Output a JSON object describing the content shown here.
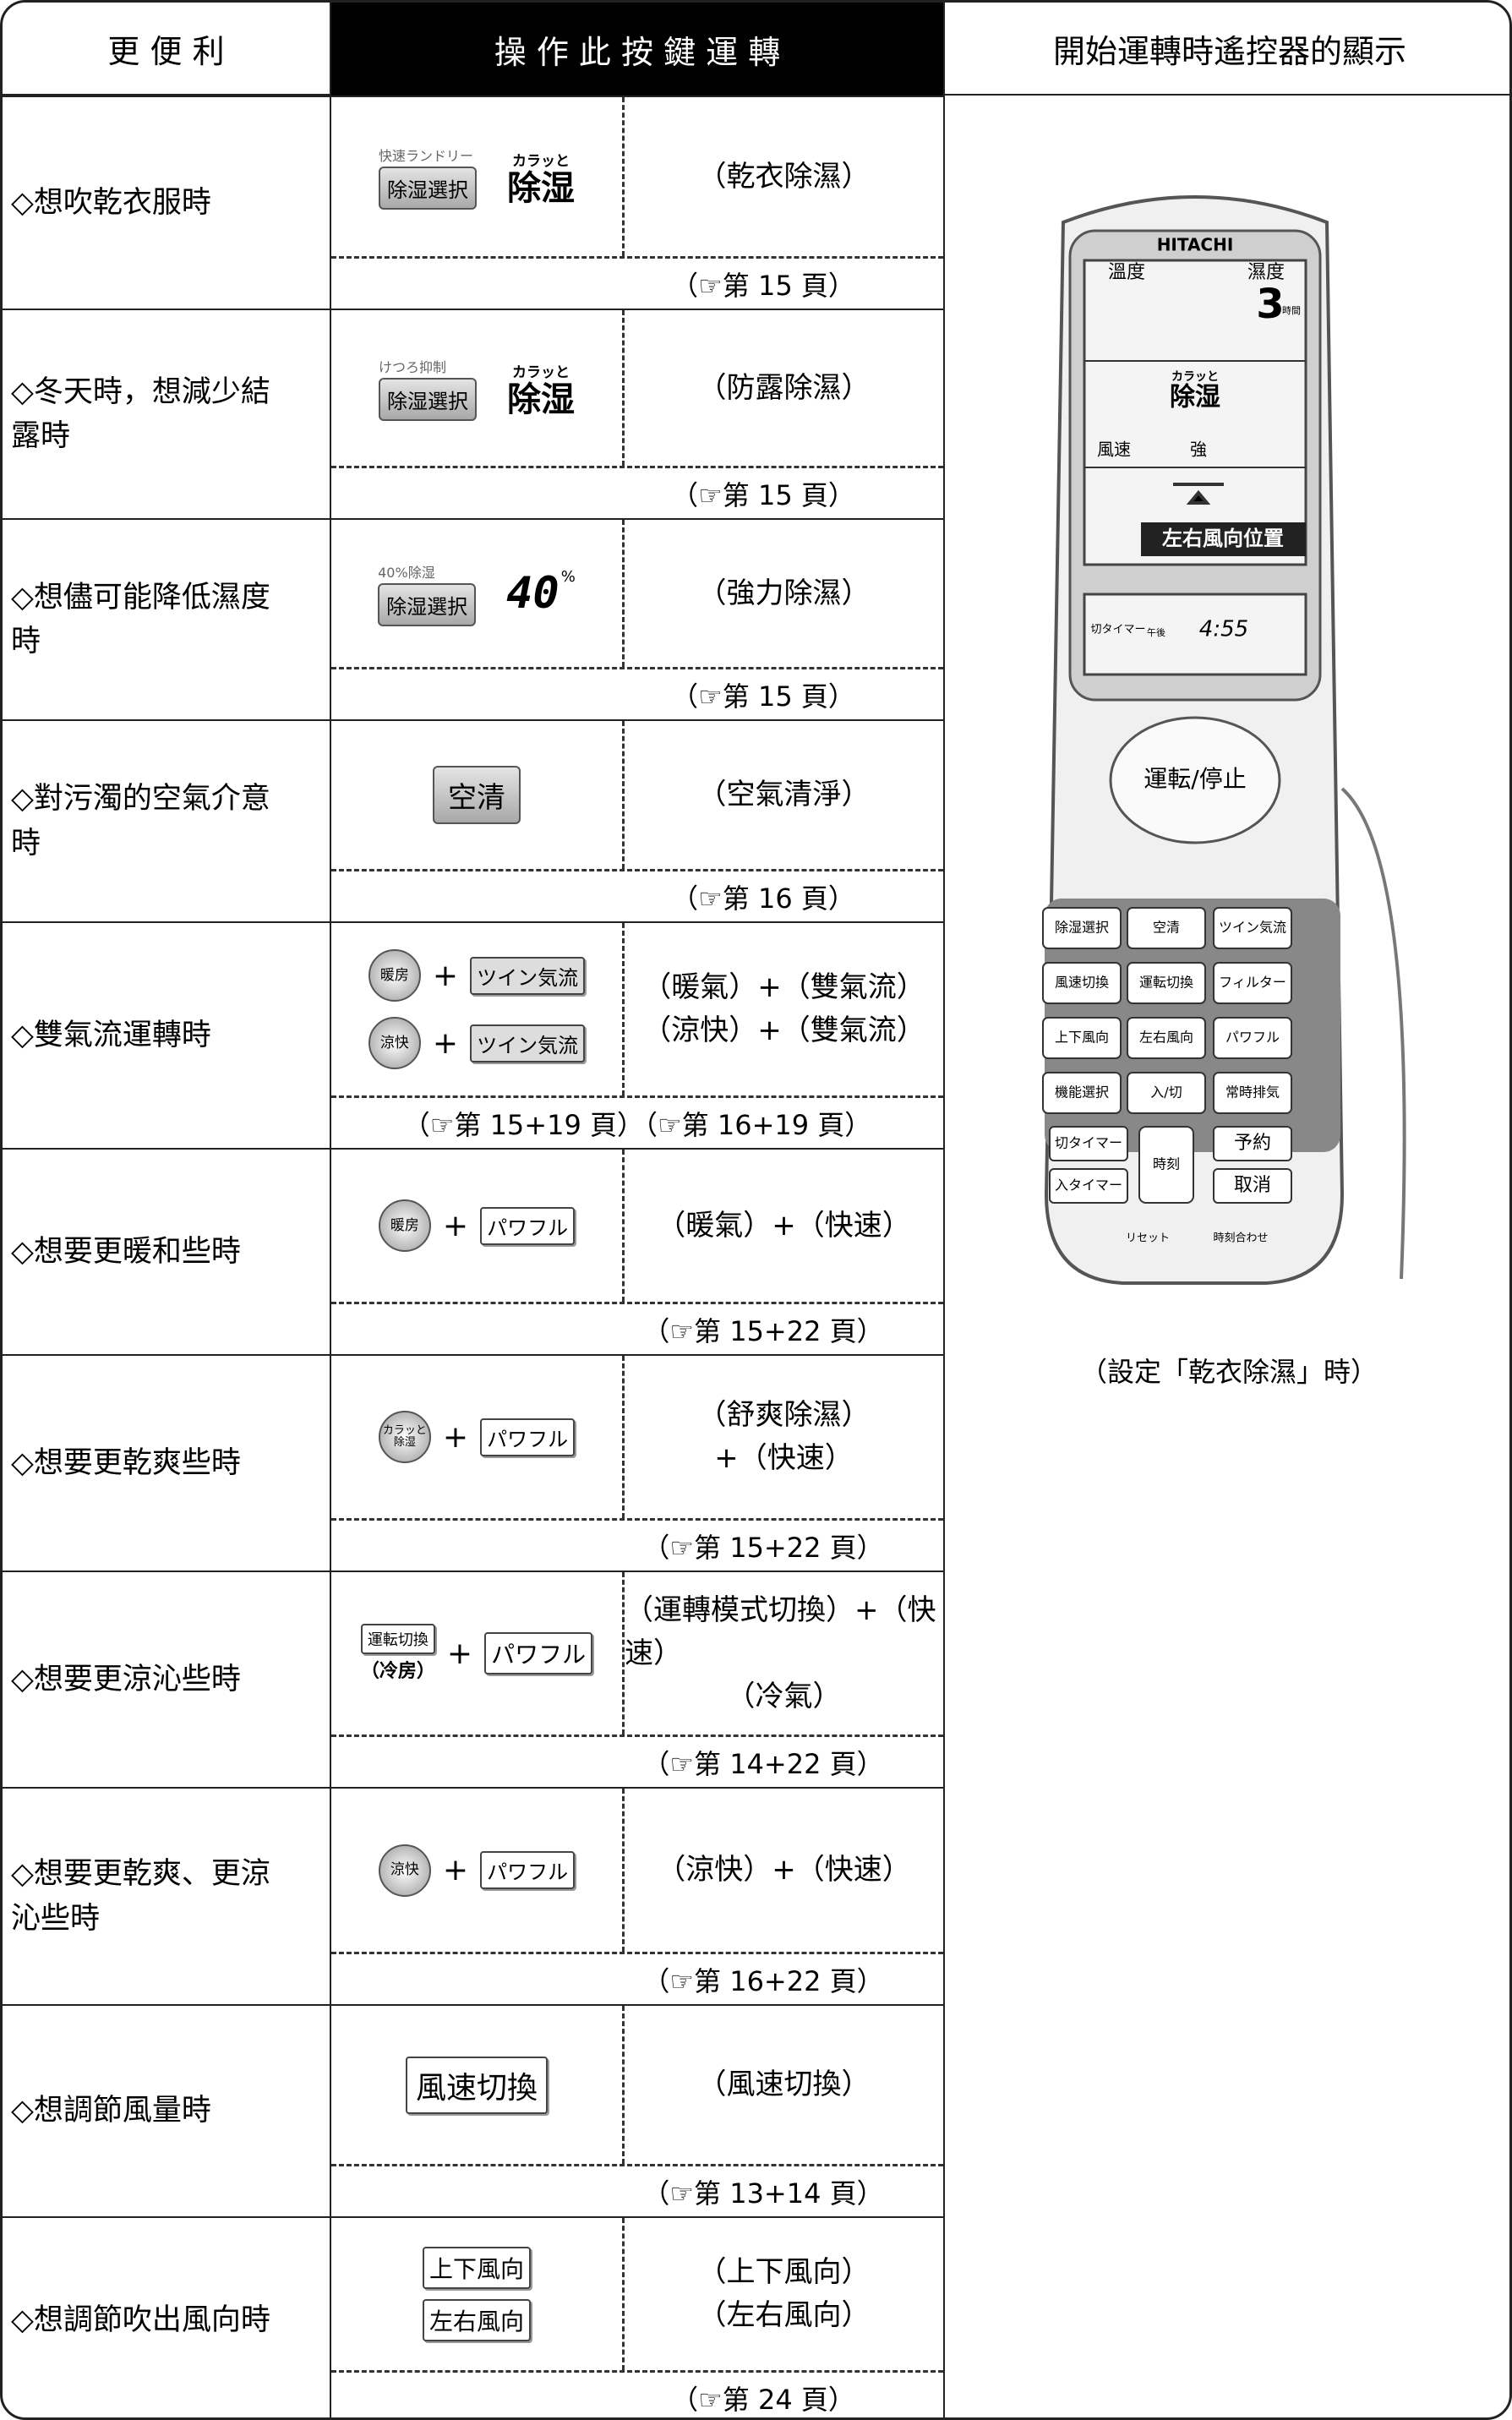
{
  "header": [
    "更 便 利",
    "操 作 此 按 鍵 運 轉",
    "開始運轉時遙控器的顯示"
  ],
  "rows": [
    {
      "label": "◇想吹乾衣服時",
      "controls": [
        "快速ランドリー",
        "除湿選択",
        "カラッと",
        "除湿"
      ],
      "modes": [
        "（乾衣除濕）"
      ],
      "ref": "（☞第 15 頁）"
    },
    {
      "label": "◇冬天時，想減少結露時",
      "controls": [
        "けつろ抑制",
        "除湿選択",
        "カラッと",
        "除湿"
      ],
      "modes": [
        "（防露除濕）"
      ],
      "ref": "（☞第 15 頁）"
    },
    {
      "label": "◇想儘可能降低濕度時",
      "controls": [
        "40%除湿",
        "除湿選択",
        "40",
        "%"
      ],
      "modes": [
        "（強力除濕）"
      ],
      "ref": "（☞第 15 頁）"
    },
    {
      "label": "◇對污濁的空氣介意時",
      "controls": [
        "空清"
      ],
      "modes": [
        "（空氣清淨）"
      ],
      "ref": "（☞第 16 頁）"
    },
    {
      "label": "◇雙氣流運轉時",
      "controls": [
        "暖房",
        "+",
        "ツイン気流",
        "涼快",
        "+",
        "ツイン気流"
      ],
      "modes": [
        "（暖氣）+（雙氣流）",
        "（涼快）+（雙氣流）"
      ],
      "ref": "（☞第 15+19 頁）（☞第 16+19 頁）"
    },
    {
      "label": "◇想要更暖和些時",
      "controls": [
        "暖房",
        "+",
        "パワフル"
      ],
      "modes": [
        "（暖氣）+（快速）"
      ],
      "ref": "（☞第 15+22 頁）"
    },
    {
      "label": "◇想要更乾爽些時",
      "controls": [
        "カラッと除湿",
        "+",
        "パワフル"
      ],
      "modes": [
        "（舒爽除濕）",
        "+（快速）"
      ],
      "ref": "（☞第 15+22 頁）"
    },
    {
      "label": "◇想要更涼沁些時",
      "controls": [
        "運転切換",
        "（冷房）",
        "+",
        "パワフル"
      ],
      "modes": [
        "（運轉模式切換）+（快速）",
        "（冷氣）"
      ],
      "ref": "（☞第 14+22 頁）"
    },
    {
      "label": "◇想要更乾爽、更涼沁些時",
      "controls": [
        "涼快",
        "+",
        "パワフル"
      ],
      "modes": [
        "（涼快）+（快速）"
      ],
      "ref": "（☞第 16+22 頁）"
    },
    {
      "label": "◇想調節風量時",
      "controls": [
        "風速切換"
      ],
      "modes": [
        "（風速切換）"
      ],
      "ref": "（☞第 13+14 頁）"
    },
    {
      "label": "◇想調節吹出風向時",
      "controls": [
        "上下風向",
        "左右風向"
      ],
      "modes": [
        "（上下風向）",
        "（左右風向）"
      ],
      "ref": "（☞第 24 頁）"
    }
  ],
  "remote": {
    "brand": "HITACHI",
    "display": [
      "溫度",
      "濕度",
      "3",
      "時間",
      "カラッと",
      "除湿",
      "風速",
      "強",
      "左右風向位置",
      "切タイマー",
      "午後",
      "4:55"
    ],
    "power": "運転/停止",
    "buttons": [
      "除湿選択",
      "空清",
      "ツイン気流",
      "風速切換",
      "運転切換",
      "フィルター",
      "上下風向",
      "左右風向",
      "パワフル",
      "機能選択",
      "入/切",
      "常時排気",
      "切タイマー",
      "時刻",
      "予約",
      "入タイマー",
      "取消"
    ],
    "footer": [
      "リセット",
      "時刻合わせ"
    ],
    "caption": "（設定「乾衣除濕」時）"
  }
}
